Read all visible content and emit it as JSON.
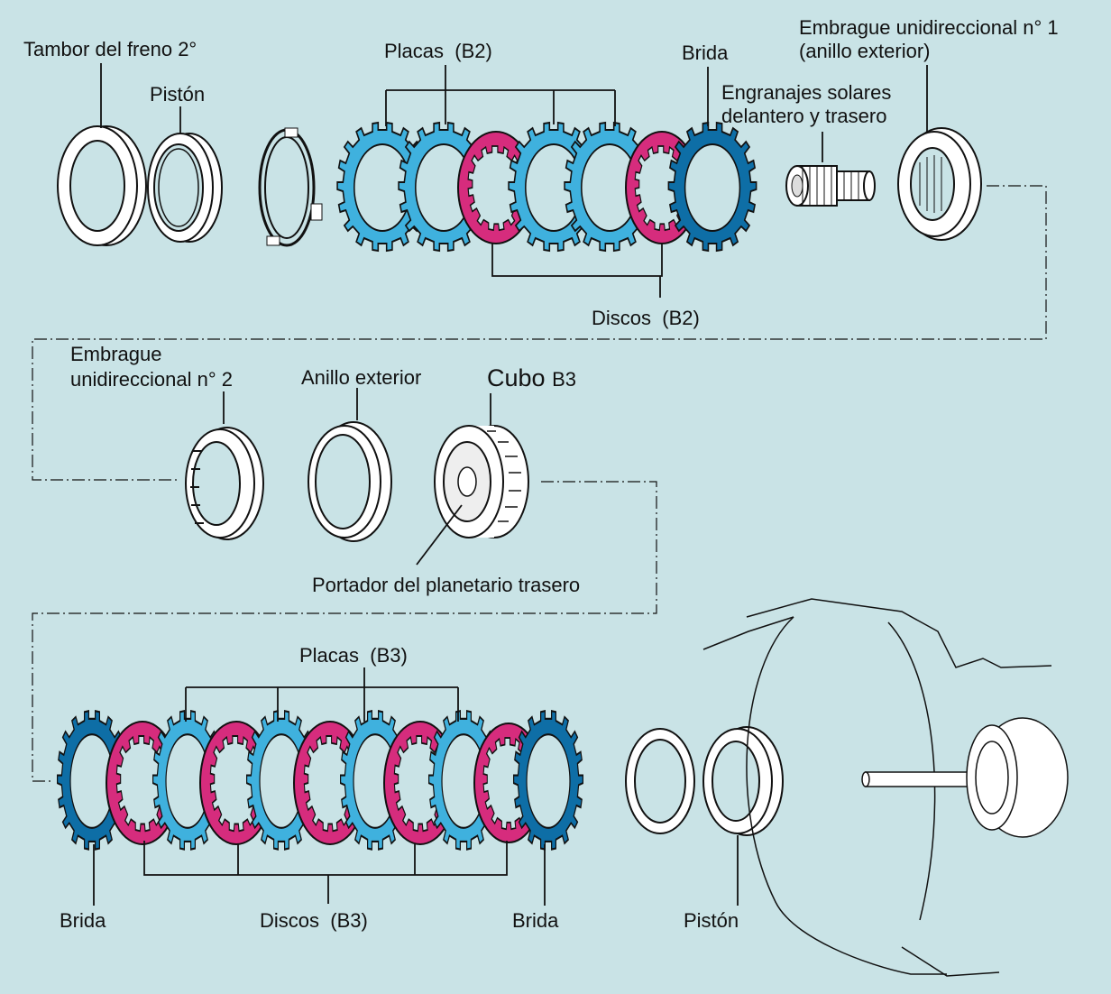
{
  "labels": {
    "drum_b2": "Tambor del freno 2°",
    "piston_top": "Pistón",
    "plates_b2": "Placas",
    "plates_b2_sub": "(B2)",
    "flange_top": "Brida",
    "owc1_line1": "Embrague unidireccional n° 1",
    "owc1_line2": "(anillo exterior)",
    "sun_gears_line1": "Engranajes solares",
    "sun_gears_line2": "delantero y trasero",
    "discs_b2": "Discos",
    "discs_b2_sub": "(B2)",
    "owc2_line1": "Embrague",
    "owc2_line2": "unidireccional n° 2",
    "outer_ring": "Anillo exterior",
    "hub_b3": "Cubo",
    "hub_b3_sub": "B3",
    "rear_carrier": "Portador del planetario trasero",
    "plates_b3": "Placas",
    "plates_b3_sub": "(B3)",
    "flange_left": "Brida",
    "discs_b3": "Discos",
    "discs_b3_sub": "(B3)",
    "flange_right": "Brida",
    "piston_bottom": "Pistón"
  },
  "colors": {
    "background": "#c9e3e6",
    "plate_blue": "#3fb1de",
    "flange_blue": "#0e6ea6",
    "disc_magenta": "#d62c7d",
    "outline": "#111111"
  }
}
